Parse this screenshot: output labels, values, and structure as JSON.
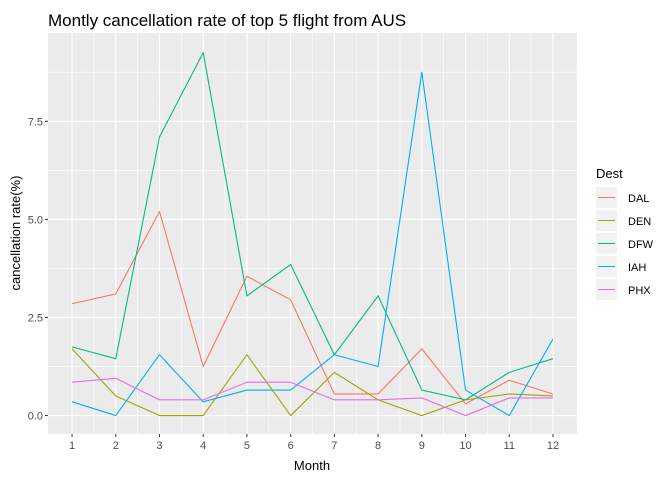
{
  "chart_data": {
    "type": "line",
    "title": "Montly cancellation rate of top 5 flight from AUS",
    "xlabel": "Month",
    "ylabel": "cancellation rate(%)",
    "x": [
      1,
      2,
      3,
      4,
      5,
      6,
      7,
      8,
      9,
      10,
      11,
      12
    ],
    "x_ticks": [
      "1",
      "2",
      "3",
      "4",
      "5",
      "6",
      "7",
      "8",
      "9",
      "10",
      "11",
      "12"
    ],
    "xlim": [
      0.45,
      12.55
    ],
    "ylim": [
      -0.47,
      9.75
    ],
    "y_ticks": [
      0,
      2.5,
      5,
      7.5
    ],
    "y_tick_labels": [
      "0.0",
      "2.5",
      "5.0",
      "7.5"
    ],
    "grid": true,
    "panel_background": "#ebebeb",
    "legend": {
      "title": "Dest",
      "position": "right"
    },
    "series": [
      {
        "name": "DAL",
        "color": "#f8766d",
        "values": [
          2.85,
          3.1,
          5.2,
          1.25,
          3.55,
          2.95,
          0.55,
          0.55,
          1.7,
          0.3,
          0.9,
          0.55
        ]
      },
      {
        "name": "DEN",
        "color": "#a3a500",
        "values": [
          1.7,
          0.5,
          0.0,
          0.0,
          1.55,
          0.0,
          1.1,
          0.4,
          0.0,
          0.4,
          0.55,
          0.5
        ]
      },
      {
        "name": "DFW",
        "color": "#00bf7d",
        "values": [
          1.75,
          1.45,
          7.1,
          9.25,
          3.05,
          3.85,
          1.55,
          3.05,
          0.65,
          0.4,
          1.1,
          1.45
        ]
      },
      {
        "name": "IAH",
        "color": "#00b0f6",
        "values": [
          0.35,
          0.0,
          1.55,
          0.35,
          0.65,
          0.65,
          1.55,
          1.25,
          8.75,
          0.65,
          0.0,
          1.95
        ]
      },
      {
        "name": "PHX",
        "color": "#e76bf3",
        "values": [
          0.85,
          0.95,
          0.4,
          0.4,
          0.85,
          0.85,
          0.4,
          0.4,
          0.45,
          0.0,
          0.45,
          0.45
        ]
      }
    ]
  }
}
